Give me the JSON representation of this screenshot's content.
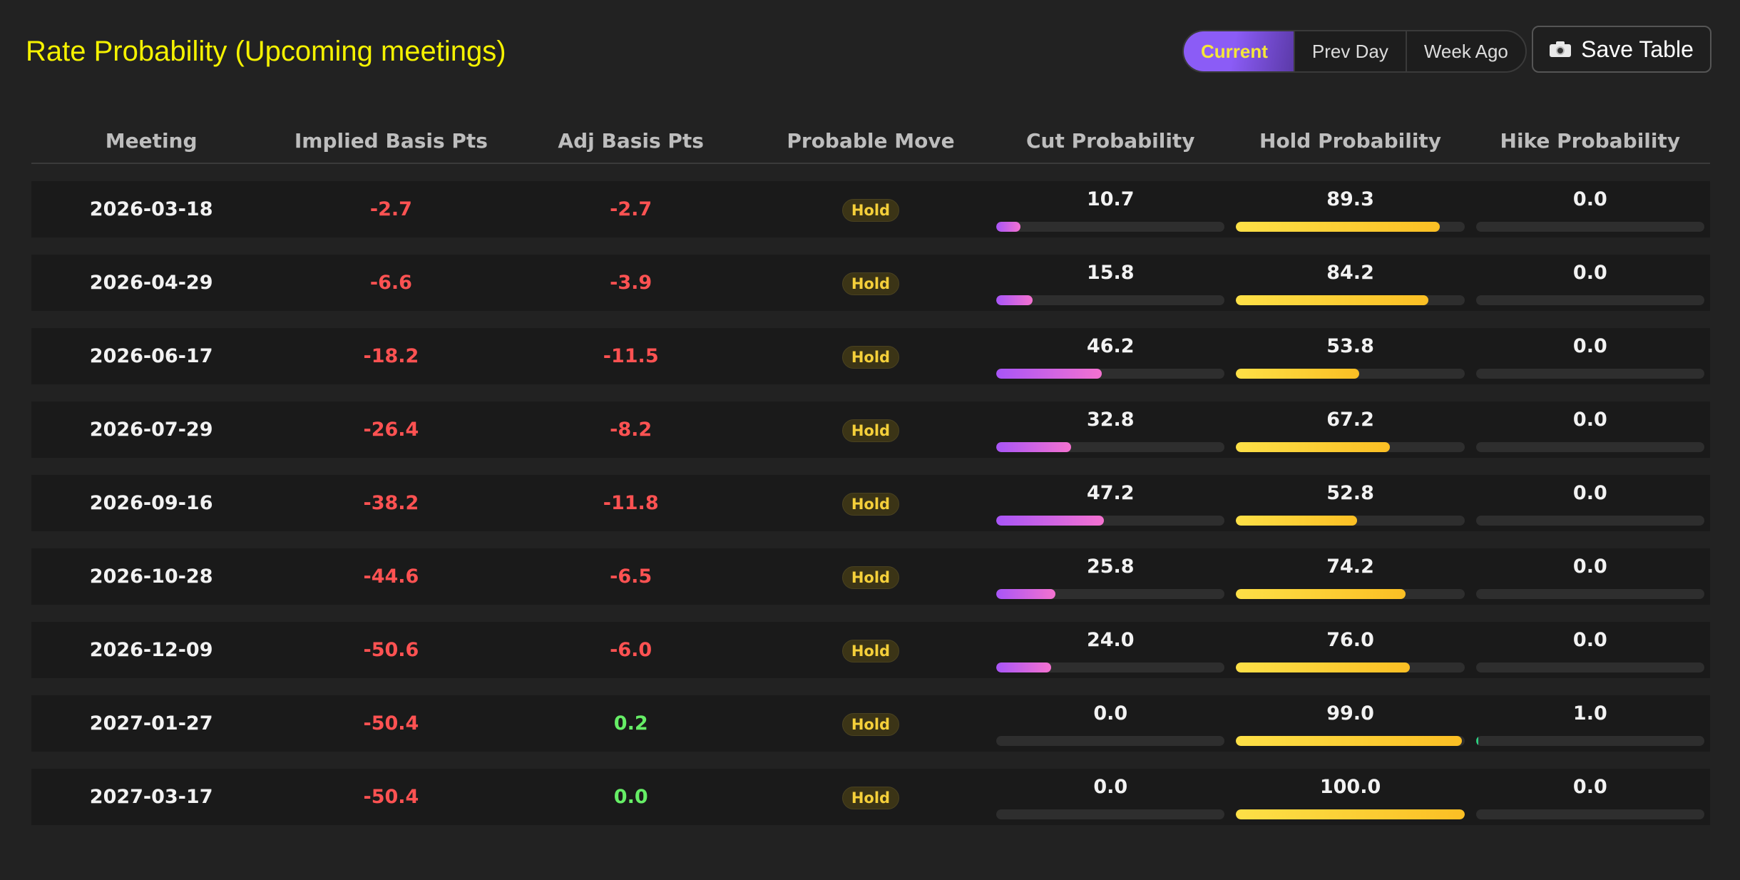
{
  "title": "Rate Probability (Upcoming meetings)",
  "view_toggle": {
    "options": [
      "Current",
      "Prev Day",
      "Week Ago"
    ],
    "selected": "Current"
  },
  "save_button": {
    "icon": "camera-icon",
    "label": "Save Table"
  },
  "colors": {
    "title": "#f5f200",
    "negative": "#ff5252",
    "positive": "#66ee66",
    "cut_bar": "#a855f7",
    "hold_bar": "#fbbf24",
    "hike_bar": "#22c55e",
    "accent": "#8b5cf6"
  },
  "table": {
    "headers": [
      "Meeting",
      "Implied Basis Pts",
      "Adj Basis Pts",
      "Probable Move",
      "Cut Probability",
      "Hold Probability",
      "Hike Probability"
    ],
    "rows": [
      {
        "meeting": "2026-03-18",
        "implied": "-2.7",
        "adj": "-2.7",
        "move": "Hold",
        "cut": "10.7",
        "hold": "89.3",
        "hike": "0.0"
      },
      {
        "meeting": "2026-04-29",
        "implied": "-6.6",
        "adj": "-3.9",
        "move": "Hold",
        "cut": "15.8",
        "hold": "84.2",
        "hike": "0.0"
      },
      {
        "meeting": "2026-06-17",
        "implied": "-18.2",
        "adj": "-11.5",
        "move": "Hold",
        "cut": "46.2",
        "hold": "53.8",
        "hike": "0.0"
      },
      {
        "meeting": "2026-07-29",
        "implied": "-26.4",
        "adj": "-8.2",
        "move": "Hold",
        "cut": "32.8",
        "hold": "67.2",
        "hike": "0.0"
      },
      {
        "meeting": "2026-09-16",
        "implied": "-38.2",
        "adj": "-11.8",
        "move": "Hold",
        "cut": "47.2",
        "hold": "52.8",
        "hike": "0.0"
      },
      {
        "meeting": "2026-10-28",
        "implied": "-44.6",
        "adj": "-6.5",
        "move": "Hold",
        "cut": "25.8",
        "hold": "74.2",
        "hike": "0.0"
      },
      {
        "meeting": "2026-12-09",
        "implied": "-50.6",
        "adj": "-6.0",
        "move": "Hold",
        "cut": "24.0",
        "hold": "76.0",
        "hike": "0.0"
      },
      {
        "meeting": "2027-01-27",
        "implied": "-50.4",
        "adj": "0.2",
        "move": "Hold",
        "cut": "0.0",
        "hold": "99.0",
        "hike": "1.0"
      },
      {
        "meeting": "2027-03-17",
        "implied": "-50.4",
        "adj": "0.0",
        "move": "Hold",
        "cut": "0.0",
        "hold": "100.0",
        "hike": "0.0"
      }
    ]
  }
}
